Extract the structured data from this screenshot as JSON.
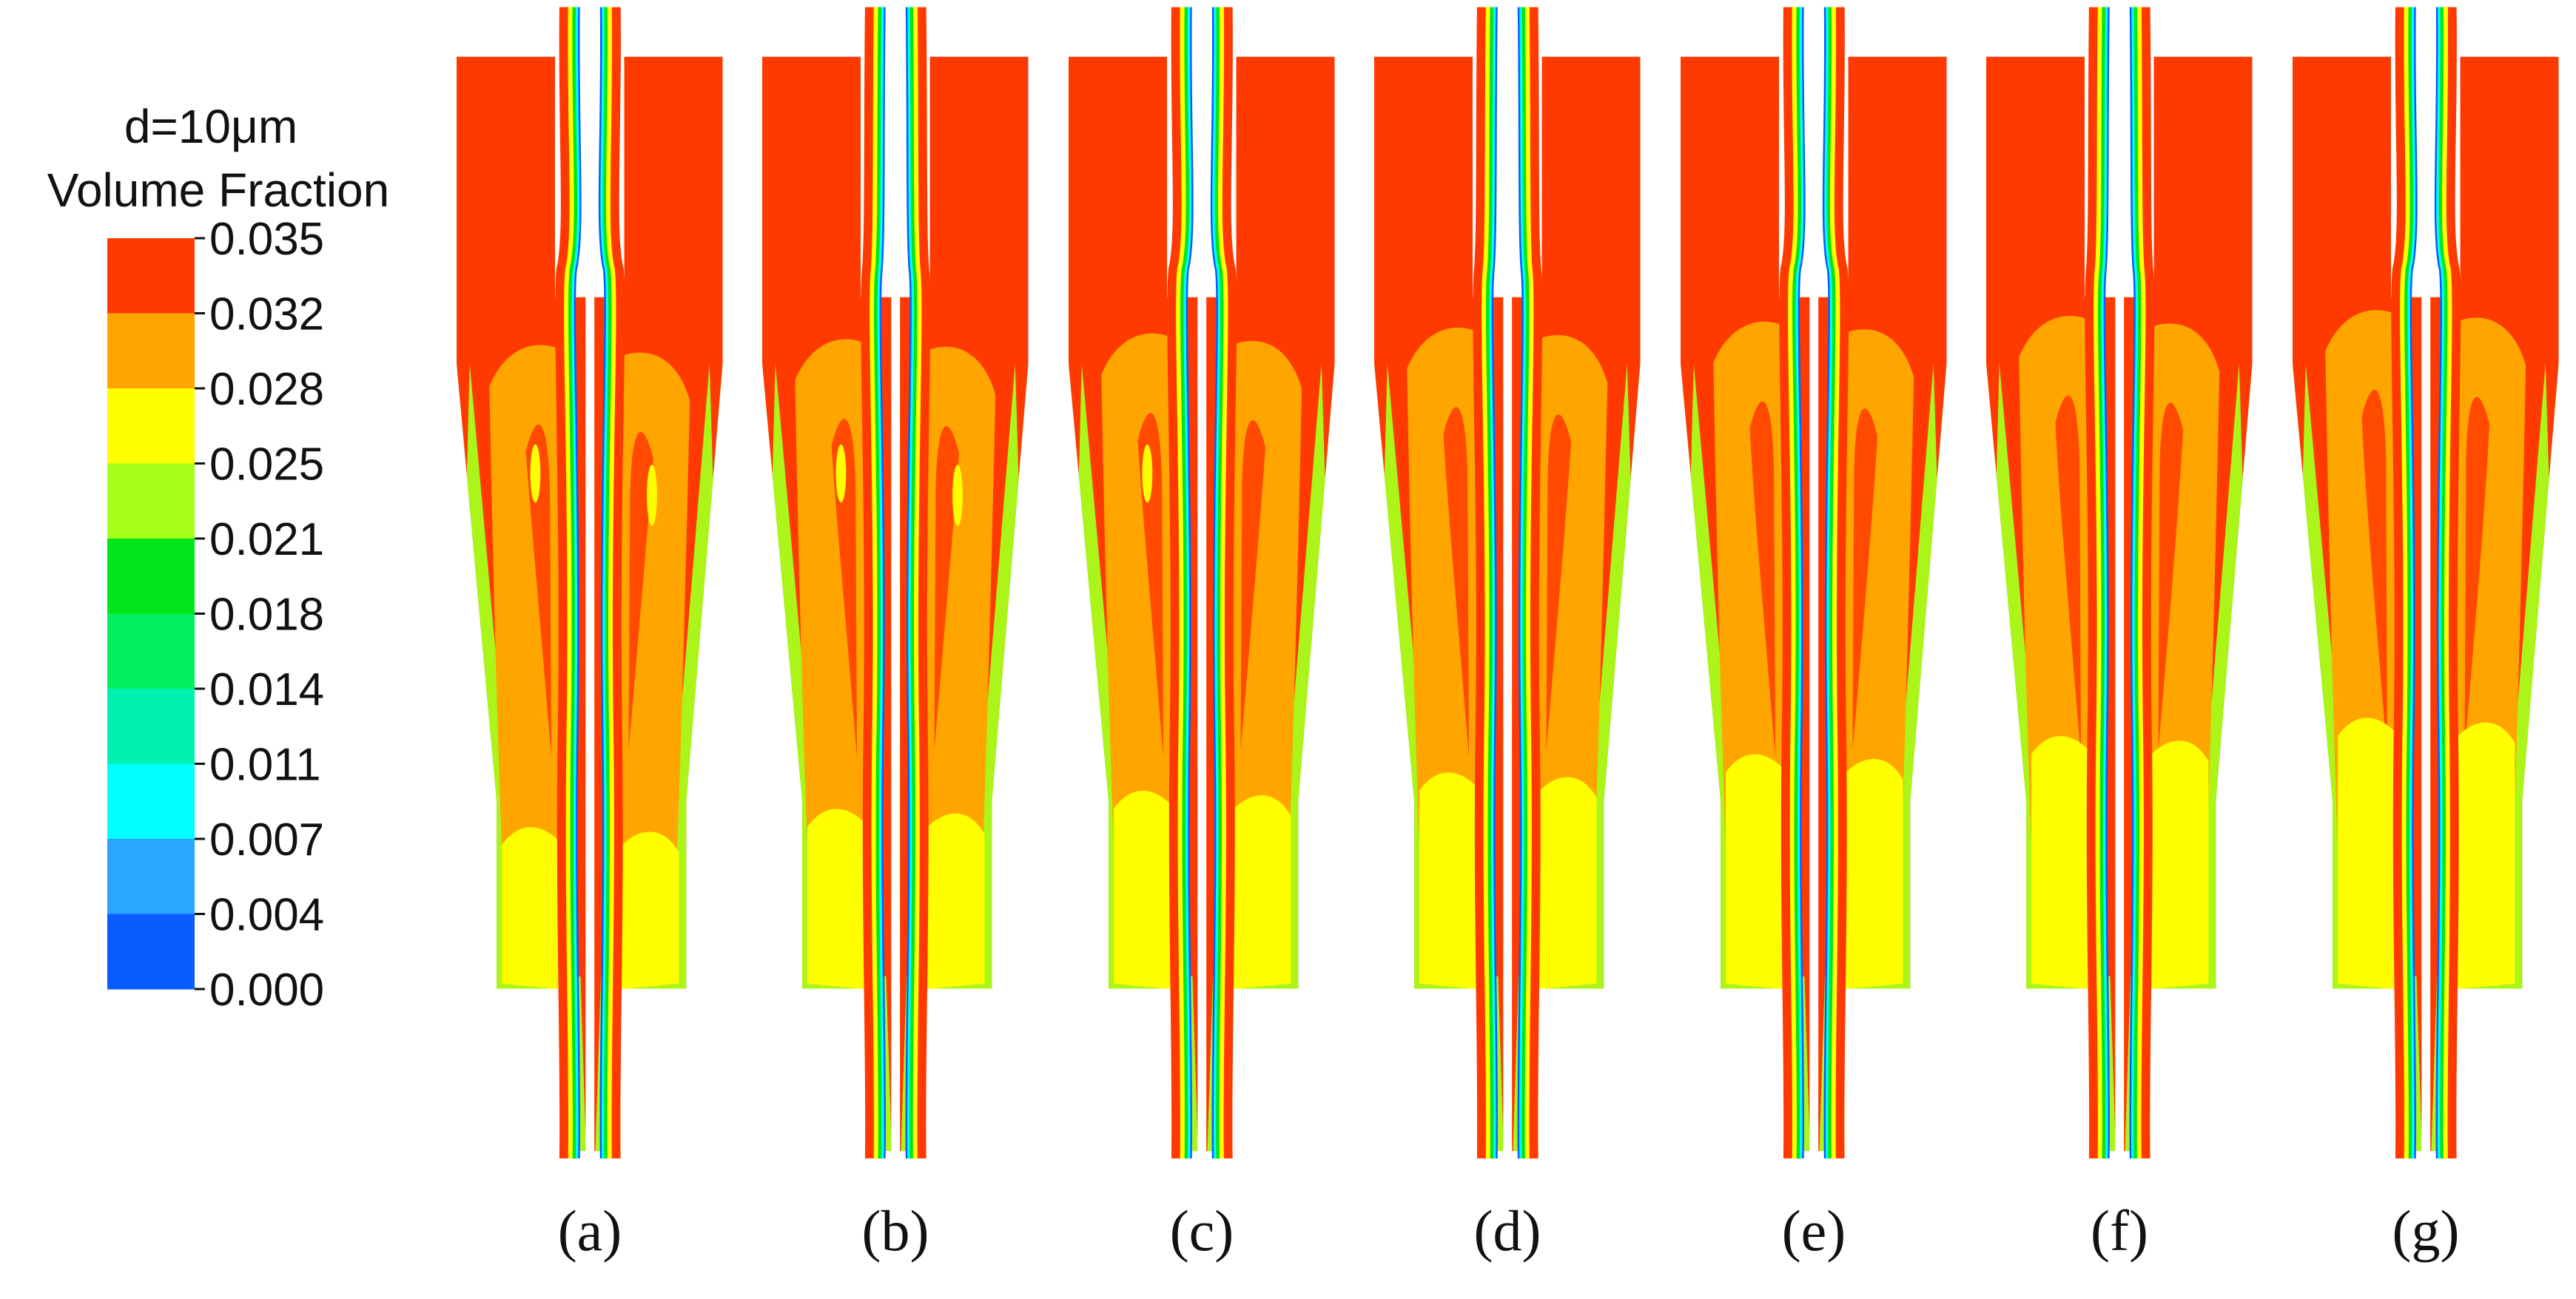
{
  "legend": {
    "title_line1": "d=10μm",
    "title_line2": "Volume Fraction",
    "levels": [
      "0.035",
      "0.032",
      "0.028",
      "0.025",
      "0.021",
      "0.018",
      "0.014",
      "0.011",
      "0.007",
      "0.004",
      "0.000"
    ],
    "colors": [
      "#ff3a00",
      "#ffa500",
      "#ffff00",
      "#a6ff1a",
      "#00e61a",
      "#00f060",
      "#00f2b0",
      "#00ffff",
      "#2aa6ff",
      "#0a5cff"
    ]
  },
  "panels": [
    {
      "label": "(a)",
      "variant": 0
    },
    {
      "label": "(b)",
      "variant": 1
    },
    {
      "label": "(c)",
      "variant": 2
    },
    {
      "label": "(d)",
      "variant": 3
    },
    {
      "label": "(e)",
      "variant": 4
    },
    {
      "label": "(f)",
      "variant": 5
    },
    {
      "label": "(g)",
      "variant": 6
    }
  ]
}
